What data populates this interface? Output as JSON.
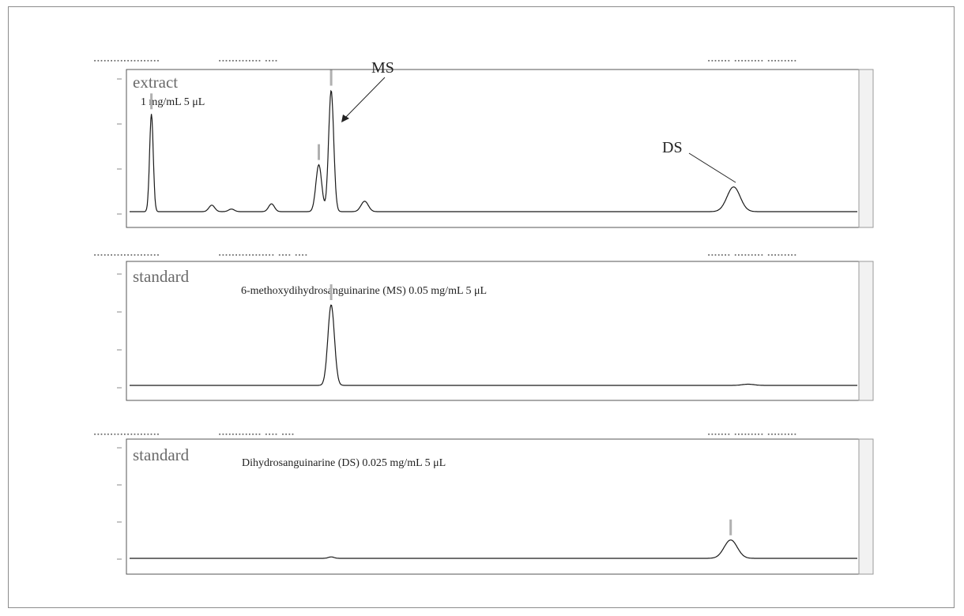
{
  "chart_data": [
    {
      "type": "line",
      "panel_label": "extract",
      "sample_info": "1 mg/mL 5 μL",
      "annotations": [
        {
          "text": "MS",
          "target_x": 0.275
        },
        {
          "text": "DS",
          "target_x": 0.83
        }
      ],
      "xlim": [
        0,
        1
      ],
      "ylim": [
        0,
        1
      ],
      "peaks": [
        {
          "x": 0.03,
          "height": 0.75,
          "width": 0.0025
        },
        {
          "x": 0.113,
          "height": 0.05,
          "width": 0.004
        },
        {
          "x": 0.14,
          "height": 0.02,
          "width": 0.004
        },
        {
          "x": 0.195,
          "height": 0.06,
          "width": 0.004
        },
        {
          "x": 0.26,
          "height": 0.36,
          "width": 0.004
        },
        {
          "x": 0.277,
          "height": 0.93,
          "width": 0.0035
        },
        {
          "x": 0.323,
          "height": 0.08,
          "width": 0.005
        },
        {
          "x": 0.83,
          "height": 0.19,
          "width": 0.009
        }
      ]
    },
    {
      "type": "line",
      "panel_label": "standard",
      "sample_info": "6-methoxydihydrosanguinarine (MS) 0.05 mg/mL  5 μL",
      "xlim": [
        0,
        1
      ],
      "ylim": [
        0,
        1
      ],
      "peaks": [
        {
          "x": 0.277,
          "height": 0.68,
          "width": 0.0045
        },
        {
          "x": 0.85,
          "height": 0.01,
          "width": 0.008
        }
      ]
    },
    {
      "type": "line",
      "panel_label": "standard",
      "sample_info": "Dihydrosanguinarine (DS) 0.025 mg/mL 5 μL",
      "xlim": [
        0,
        1
      ],
      "ylim": [
        0,
        1
      ],
      "peaks": [
        {
          "x": 0.277,
          "height": 0.012,
          "width": 0.004
        },
        {
          "x": 0.826,
          "height": 0.155,
          "width": 0.009
        }
      ]
    }
  ],
  "colors": {
    "trace": "#1a1a1a",
    "axis": "#555555",
    "panel_label": "#6a6a6a",
    "frame": "#8c8c8c"
  }
}
